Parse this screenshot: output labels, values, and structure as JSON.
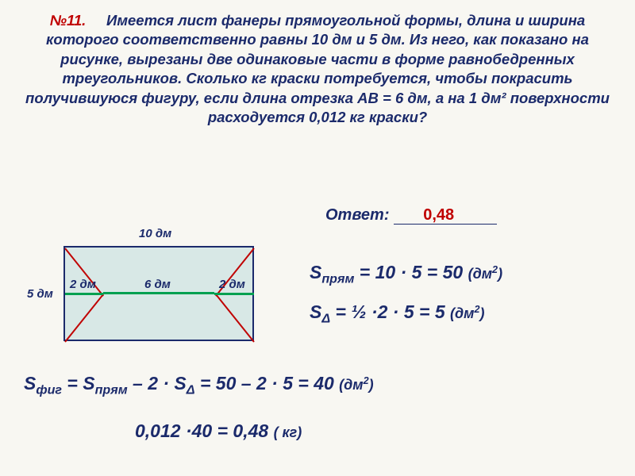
{
  "problem": {
    "number": "№11.",
    "text": "Имеется лист фанеры прямоугольной формы, длина и ширина которого соответственно равны 10 дм и 5 дм. Из него, как показано на рисунке, вырезаны две одинаковые части в форме равнобедренных треугольников. Сколько кг краски потребуется, чтобы покрасить получившуюся фигуру, если длина отрезка AB = 6 дм, а на 1 дм² поверхности расходуется 0,012 кг краски?",
    "number_color": "#c00000",
    "text_color": "#1b2a6b"
  },
  "answer": {
    "label": "Ответ:",
    "value": "0,48",
    "value_color": "#c00000"
  },
  "diagram": {
    "rect_fill": "#d8e8e6",
    "rect_border": "#1b2a6b",
    "diagonal_color": "#c00000",
    "ab_color": "#00a050",
    "midline_color": "#1b2a6b",
    "labels": {
      "top": "10 дм",
      "left_outer": "5 дм",
      "left_inner": "2 дм",
      "center": "6 дм",
      "right_inner": "2 дм"
    }
  },
  "equations": {
    "s_rect": "S<sub>прям</sub> = 10 · 5 = 50 <span class='small'>(дм<sup>2</sup>)</span>",
    "s_tri": "S<sub>Δ</sub> = ½ ·2 · 5 = 5 <span class='small'>(дм<sup>2</sup>)</span>",
    "s_fig": "S<sub>фиг</sub> = S<sub>прям</sub> – 2 · S<sub>Δ</sub> = 50 – 2 · 5 = 40 <span class='small'>(дм<sup>2</sup>)</span>",
    "final": "0,012 ·40 = 0,48 <span class='small'>( кг)</span>"
  }
}
